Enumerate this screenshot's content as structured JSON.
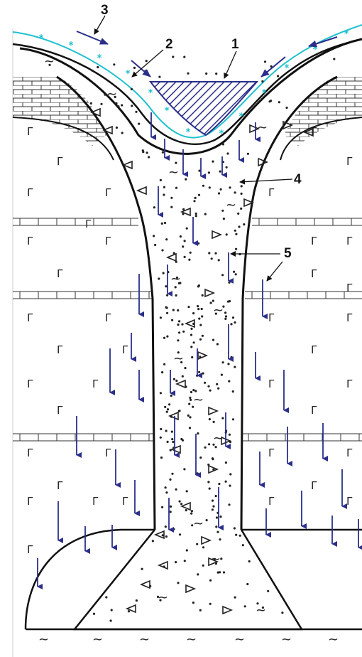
{
  "labels": [
    {
      "id": "1",
      "text": "1"
    },
    {
      "id": "2",
      "text": "2"
    },
    {
      "id": "3",
      "text": "3"
    },
    {
      "id": "4",
      "text": "4"
    },
    {
      "id": "5",
      "text": "5"
    }
  ],
  "colors": {
    "line": "#111111",
    "arrow": "#2b2f8a",
    "soil": "#1fc0cf",
    "lake_hatch": "#2b2f8a"
  },
  "symbols": {
    "volcanic_rock": "Г",
    "breccia": "◁",
    "clay": "~",
    "soil": "*"
  }
}
